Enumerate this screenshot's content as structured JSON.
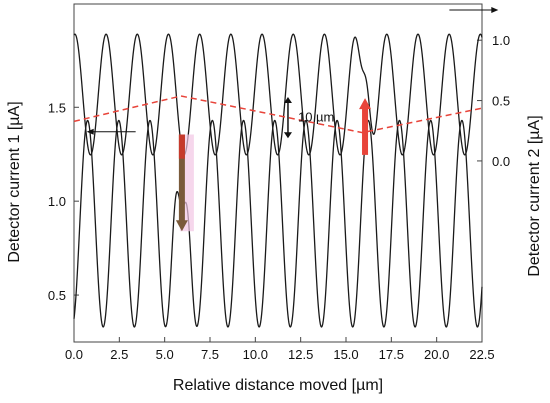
{
  "chart_data": {
    "type": "line",
    "title": "",
    "xlabel": "Relative distance moved [µm]",
    "ylabel_left": "Detector current 1 [µA]",
    "ylabel_right": "Detector current 2 [µA]",
    "xlim": [
      0,
      22.5
    ],
    "x_ticks": [
      "0.0",
      "2.5",
      "5.0",
      "7.5",
      "10.0",
      "12.5",
      "15.0",
      "17.5",
      "20.0",
      "22.5"
    ],
    "ylim_left": [
      0.25,
      2.05
    ],
    "y_ticks_left": [
      "0.5",
      "1.0",
      "1.5"
    ],
    "ylim_right": [
      -1.5,
      1.3
    ],
    "y_ticks_right": [
      "0.0",
      "0.5",
      "1.0"
    ],
    "grid": false,
    "colors": {
      "signal": "#1a1a1a",
      "reference": "#e8443a",
      "arrow_up": "#e8443a",
      "arrow_down": "#c63a2c",
      "arrow_down_tip": "#7a5a3a",
      "highlight": "#f2c6e4"
    },
    "series": [
      {
        "axis": "right",
        "color": "#1a1a1a",
        "period": 1.72,
        "phase_x": 0.05,
        "center": 0.55,
        "amplitude": 0.5,
        "x_start": 0.0,
        "x_end": 22.5,
        "anomaly": {
          "x": 16.05,
          "y": 0.75
        }
      },
      {
        "axis": "left",
        "color": "#1a1a1a",
        "period": 1.72,
        "phase_x": 0.75,
        "center": 0.88,
        "amplitude": 0.55,
        "x_start": 0.0,
        "x_end": 22.5,
        "anomaly": {
          "x": 5.95,
          "y": 0.83
        }
      },
      {
        "axis": "left",
        "style": "dashed",
        "color": "#e8443a",
        "points": [
          [
            0,
            1.425
          ],
          [
            5.9,
            1.56
          ],
          [
            15.9,
            1.365
          ],
          [
            22.5,
            1.495
          ]
        ]
      }
    ],
    "annotations": {
      "scale_bar_label": "10 µm",
      "scale_bar": {
        "x": 11.8,
        "y_left_from": 1.555,
        "y_left_to": 1.335
      },
      "up_arrow": {
        "x": 16.05,
        "axis": "right",
        "y_from": 0.05,
        "y_to": 0.52
      },
      "down_arrow": {
        "x": 5.95,
        "axis": "left",
        "y_from": 1.355,
        "y_to": 0.84
      },
      "direction_arrows": [
        {
          "direction": "right",
          "x_from": 20.7,
          "x_to": 23.4,
          "axis": "right",
          "y": 1.25
        },
        {
          "direction": "left",
          "x_from": 3.4,
          "x_to": 0.7,
          "axis": "left",
          "y": 1.37
        }
      ]
    }
  }
}
